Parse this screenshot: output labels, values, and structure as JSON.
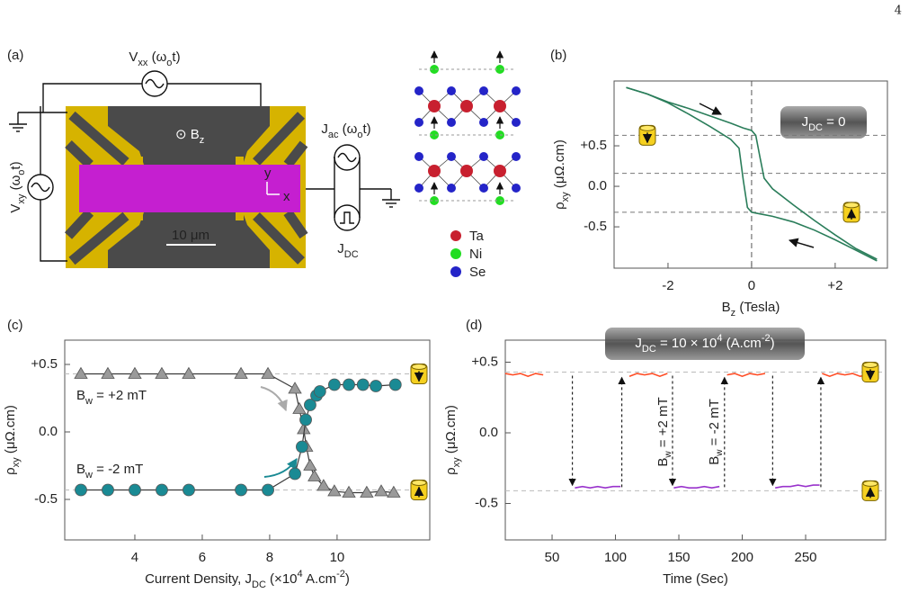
{
  "page_number": "4",
  "panel_a": {
    "label": "(a)",
    "vxx": [
      "V",
      {
        "text": "xx",
        "shift": "sub"
      },
      " (ω",
      {
        "text": "o",
        "shift": "sub"
      },
      "t)"
    ],
    "vxy": [
      "V",
      {
        "text": "xy",
        "shift": "sub"
      },
      " (ω",
      {
        "text": "o",
        "shift": "sub"
      },
      "t)"
    ],
    "bz": [
      "⊙ B",
      {
        "text": "z",
        "shift": "sub"
      }
    ],
    "axis_y": "y",
    "axis_x": "x",
    "scale_bar": "10 μm",
    "jac": [
      "J",
      {
        "text": "ac",
        "shift": "sub"
      },
      " (ω",
      {
        "text": "o",
        "shift": "sub"
      },
      "t)"
    ],
    "jdc": [
      "J",
      {
        "text": "DC",
        "shift": "sub"
      }
    ],
    "legend": [
      {
        "name": "Ta",
        "color": "#c8202f"
      },
      {
        "name": "Ni",
        "color": "#22dd22"
      },
      {
        "name": "Se",
        "color": "#2424c8"
      }
    ]
  },
  "chart_data": [
    {
      "type": "line",
      "panel_label": "(b)",
      "xlabel": [
        "B",
        {
          "text": "z",
          "shift": "sub"
        },
        " (Tesla)"
      ],
      "ylabel": [
        "ρ",
        {
          "text": "xy",
          "shift": "sub"
        },
        " (μΩ.cm)"
      ],
      "xlim": [
        -3.29,
        3.25
      ],
      "ylim": [
        -1.01,
        1.3
      ],
      "xticks": [
        -2,
        0,
        {
          "value": 2,
          "label": "+2"
        }
      ],
      "yticks": [
        {
          "value": 0.5,
          "label": "+0.5"
        },
        {
          "value": 0,
          "label": "0.0"
        },
        {
          "value": -0.5,
          "label": "-0.5"
        }
      ],
      "hlines": [
        0.63,
        0.16,
        -0.32
      ],
      "vlines": [
        0
      ],
      "annotations": [
        [
          "J",
          {
            "text": "DC",
            "shift": "sub"
          },
          " = 0"
        ]
      ],
      "series": [
        {
          "color": "#2a7d5a",
          "x": [
            -3.0,
            -2.5,
            -2.0,
            -1.5,
            -1.0,
            -0.5,
            -0.2,
            0.0,
            0.1,
            0.2,
            0.3,
            0.5,
            1.0,
            1.5,
            2.0,
            2.5,
            3.0
          ],
          "values": [
            1.22,
            1.14,
            1.04,
            0.96,
            0.87,
            0.78,
            0.72,
            0.69,
            0.63,
            0.36,
            0.1,
            -0.03,
            -0.23,
            -0.42,
            -0.6,
            -0.77,
            -0.9
          ]
        },
        {
          "color": "#2a7d5a",
          "x": [
            3.0,
            2.5,
            2.0,
            1.5,
            1.0,
            0.5,
            0.2,
            0.0,
            -0.1,
            -0.2,
            -0.3,
            -0.5,
            -1.0,
            -1.5,
            -2.0,
            -2.5,
            -3.0
          ],
          "values": [
            -0.92,
            -0.79,
            -0.66,
            -0.54,
            -0.44,
            -0.37,
            -0.34,
            -0.32,
            -0.26,
            0.08,
            0.47,
            0.58,
            0.74,
            0.89,
            1.03,
            1.14,
            1.22
          ]
        }
      ]
    },
    {
      "type": "line",
      "panel_label": "(c)",
      "xlabel": [
        "Current Density, J",
        {
          "text": "DC",
          "shift": "sub"
        },
        " (×10",
        {
          "text": "4",
          "shift": "super"
        },
        " A.cm",
        {
          "text": "-2",
          "shift": "super"
        },
        ")"
      ],
      "ylabel": [
        "ρ",
        {
          "text": "xy",
          "shift": "sub"
        },
        " (μΩ.cm)"
      ],
      "xlim": [
        1.92,
        12.75
      ],
      "ylim": [
        -0.8,
        0.68
      ],
      "xticks": [
        4,
        6,
        8,
        10
      ],
      "yticks": [
        {
          "value": 0.5,
          "label": "+0.5"
        },
        {
          "value": 0,
          "label": "0.0"
        },
        {
          "value": -0.5,
          "label": "-0.5"
        }
      ],
      "hlines": [
        0.43,
        -0.43
      ],
      "annotations": [
        [
          "B",
          {
            "text": "w",
            "shift": "sub"
          },
          " = +2 mT"
        ],
        [
          "B",
          {
            "text": "w",
            "shift": "sub"
          },
          " = -2 mT"
        ]
      ],
      "series": [
        {
          "marker": "triangle",
          "color": "#9a9a9a",
          "line_color": "#3a3a3a",
          "x": [
            2.4,
            3.2,
            4.0,
            4.8,
            5.6,
            7.15,
            7.95,
            8.75,
            8.88,
            9.01,
            9.09,
            9.2,
            9.33,
            9.6,
            9.92,
            10.35,
            10.88,
            11.31,
            11.68
          ],
          "values": [
            0.43,
            0.43,
            0.43,
            0.43,
            0.43,
            0.43,
            0.43,
            0.32,
            0.17,
            0.02,
            -0.11,
            -0.25,
            -0.33,
            -0.4,
            -0.44,
            -0.45,
            -0.45,
            -0.44,
            -0.45
          ]
        },
        {
          "marker": "circle",
          "color": "#1a8a94",
          "line_color": "#3a3a3a",
          "x": [
            2.4,
            3.2,
            4.0,
            4.8,
            5.6,
            7.15,
            7.95,
            8.75,
            8.96,
            9.07,
            9.2,
            9.39,
            9.49,
            9.92,
            10.35,
            10.77,
            11.15,
            11.73
          ],
          "values": [
            -0.43,
            -0.43,
            -0.43,
            -0.43,
            -0.43,
            -0.43,
            -0.43,
            -0.31,
            -0.11,
            0.09,
            0.2,
            0.27,
            0.3,
            0.35,
            0.35,
            0.35,
            0.34,
            0.35
          ]
        }
      ]
    },
    {
      "type": "line",
      "panel_label": "(d)",
      "xlabel": [
        "Time (Sec)"
      ],
      "ylabel": [
        "ρ",
        {
          "text": "xy",
          "shift": "sub"
        },
        " (μΩ.cm)"
      ],
      "xlim": [
        13.1,
        313.1
      ],
      "ylim": [
        -0.758,
        0.656
      ],
      "xticks": [
        50,
        100,
        150,
        200,
        250
      ],
      "yticks": [
        {
          "value": 0.5,
          "label": "+0.5"
        },
        {
          "value": 0,
          "label": "0.0"
        },
        {
          "value": -0.5,
          "label": "-0.5"
        }
      ],
      "hlines": [
        0.43,
        -0.41
      ],
      "annotations": [
        [
          "J",
          {
            "text": "DC",
            "shift": "sub"
          },
          " = 10 × 10",
          {
            "text": "4",
            "shift": "super"
          },
          " (A.cm",
          {
            "text": "-2",
            "shift": "super"
          },
          ")"
        ],
        [
          "B",
          {
            "text": "w",
            "shift": "sub"
          },
          " = +2 mT"
        ],
        [
          "B",
          {
            "text": "w",
            "shift": "sub"
          },
          " = -2 mT"
        ]
      ],
      "switches": [
        {
          "x": 66,
          "direction": "down"
        },
        {
          "x": 105,
          "direction": "up"
        },
        {
          "x": 145,
          "direction": "down"
        },
        {
          "x": 186,
          "direction": "up"
        },
        {
          "x": 224,
          "direction": "down"
        },
        {
          "x": 262,
          "direction": "up"
        }
      ],
      "series": [
        {
          "color": "#ff4a22",
          "x": [
            13,
            19,
            25,
            31,
            37,
            43,
            70,
            111,
            117,
            123,
            129,
            135,
            141,
            165,
            188,
            194,
            200,
            206,
            212,
            218,
            240,
            263,
            269,
            275,
            281,
            287,
            293,
            299
          ],
          "values": [
            0.42,
            0.41,
            0.42,
            0.4,
            0.42,
            0.41,
            null,
            0.4,
            0.42,
            0.41,
            0.42,
            0.4,
            0.42,
            null,
            0.41,
            0.42,
            0.4,
            0.42,
            0.41,
            0.42,
            null,
            0.42,
            0.4,
            0.42,
            0.41,
            0.42,
            0.4,
            0.41
          ]
        },
        {
          "color": "#9933cc",
          "x": [
            68,
            74,
            80,
            86,
            92,
            98,
            104,
            125,
            146,
            152,
            158,
            164,
            170,
            176,
            182,
            204,
            226,
            232,
            238,
            244,
            250,
            256,
            261
          ],
          "values": [
            -0.39,
            -0.38,
            -0.39,
            -0.38,
            -0.39,
            -0.38,
            -0.38,
            null,
            -0.39,
            -0.38,
            -0.39,
            -0.39,
            -0.38,
            -0.39,
            -0.38,
            null,
            -0.39,
            -0.38,
            -0.38,
            -0.37,
            -0.38,
            -0.37,
            -0.37
          ]
        }
      ]
    }
  ]
}
